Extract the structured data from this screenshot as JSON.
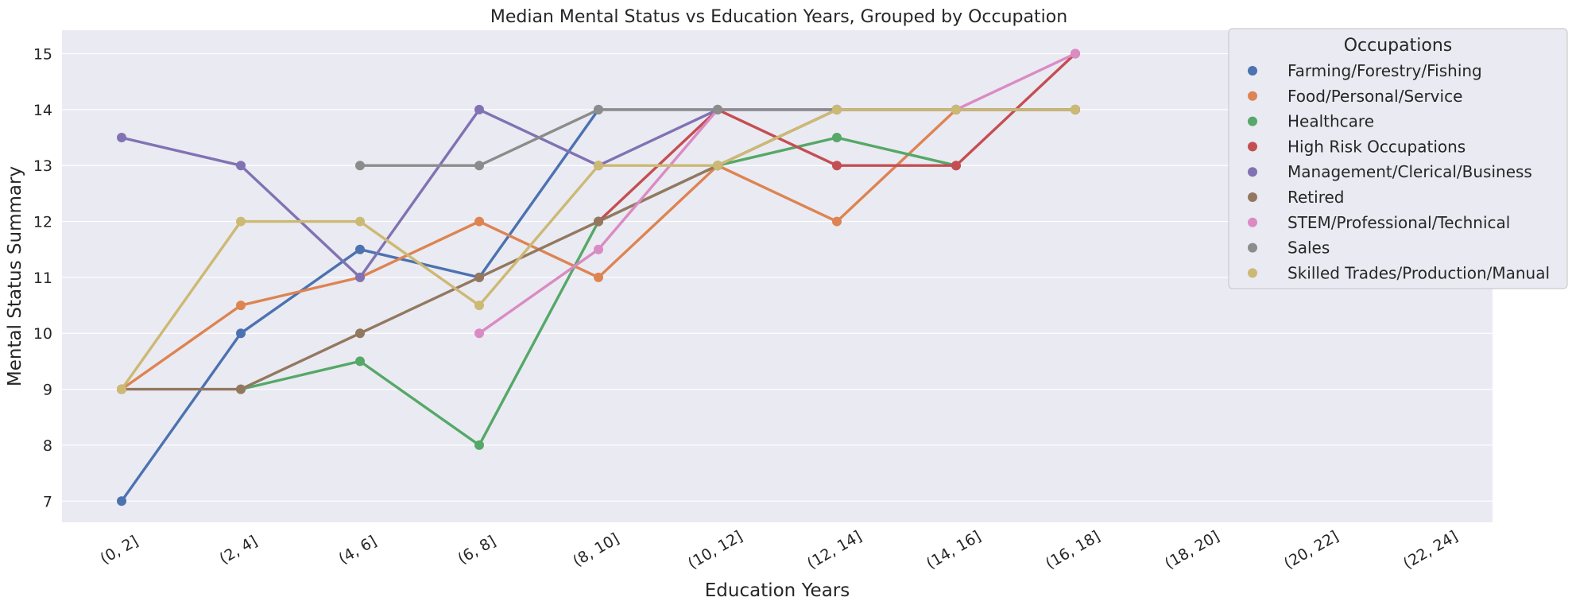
{
  "chart_data": {
    "type": "line",
    "title": "Median Mental Status vs Education Years, Grouped by Occupation",
    "xlabel": "Education Years",
    "ylabel": "Mental Status Summary",
    "categories": [
      "(0, 2]",
      "(2, 4]",
      "(4, 6]",
      "(6, 8]",
      "(8, 10]",
      "(10, 12]",
      "(12, 14]",
      "(14, 16]",
      "(16, 18]",
      "(18, 20]",
      "(20, 22]",
      "(22, 24]"
    ],
    "yticks": [
      "7",
      "8",
      "9",
      "10",
      "11",
      "12",
      "13",
      "14",
      "15"
    ],
    "ylim": [
      6.62,
      15.42
    ],
    "grid": true,
    "legend": {
      "title": "Occupations",
      "placement": "top-right"
    },
    "series": [
      {
        "name": "Farming/Forestry/Fishing",
        "color": "#4C72B0",
        "values": [
          7,
          10,
          11.5,
          11,
          14,
          14,
          14,
          14,
          14,
          null,
          null,
          null
        ]
      },
      {
        "name": "Food/Personal/Service",
        "color": "#DD8452",
        "values": [
          9,
          10.5,
          11,
          12,
          11,
          13,
          12,
          14,
          14,
          null,
          null,
          null
        ]
      },
      {
        "name": "Healthcare",
        "color": "#55A868",
        "values": [
          null,
          9,
          9.5,
          8,
          12,
          13,
          13.5,
          13,
          null,
          null,
          null,
          null
        ]
      },
      {
        "name": "High Risk Occupations",
        "color": "#C44E52",
        "values": [
          null,
          null,
          null,
          null,
          12,
          14,
          13,
          13,
          15,
          null,
          null,
          null
        ]
      },
      {
        "name": "Management/Clerical/Business",
        "color": "#8172B3",
        "values": [
          13.5,
          13,
          11,
          14,
          13,
          14,
          14,
          14,
          14,
          null,
          null,
          null
        ]
      },
      {
        "name": "Retired",
        "color": "#937860",
        "values": [
          9,
          9,
          10,
          11,
          12,
          13,
          14,
          14,
          14,
          null,
          null,
          null
        ]
      },
      {
        "name": "STEM/Professional/Technical",
        "color": "#DA8BC3",
        "values": [
          null,
          null,
          null,
          10,
          11.5,
          14,
          14,
          14,
          15,
          null,
          null,
          null
        ]
      },
      {
        "name": "Sales",
        "color": "#8C8C8C",
        "values": [
          null,
          null,
          13,
          13,
          14,
          14,
          14,
          14,
          14,
          null,
          null,
          null
        ]
      },
      {
        "name": "Skilled Trades/Production/Manual",
        "color": "#CCB974",
        "values": [
          9,
          12,
          12,
          10.5,
          13,
          13,
          14,
          14,
          14,
          null,
          null,
          null
        ]
      }
    ]
  },
  "colors": {
    "plot_background": "#EAEAF2",
    "grid": "#FFFFFF",
    "legend_background": "#EAEAF2",
    "legend_border": "#CCCCCC",
    "text": "#262626"
  }
}
